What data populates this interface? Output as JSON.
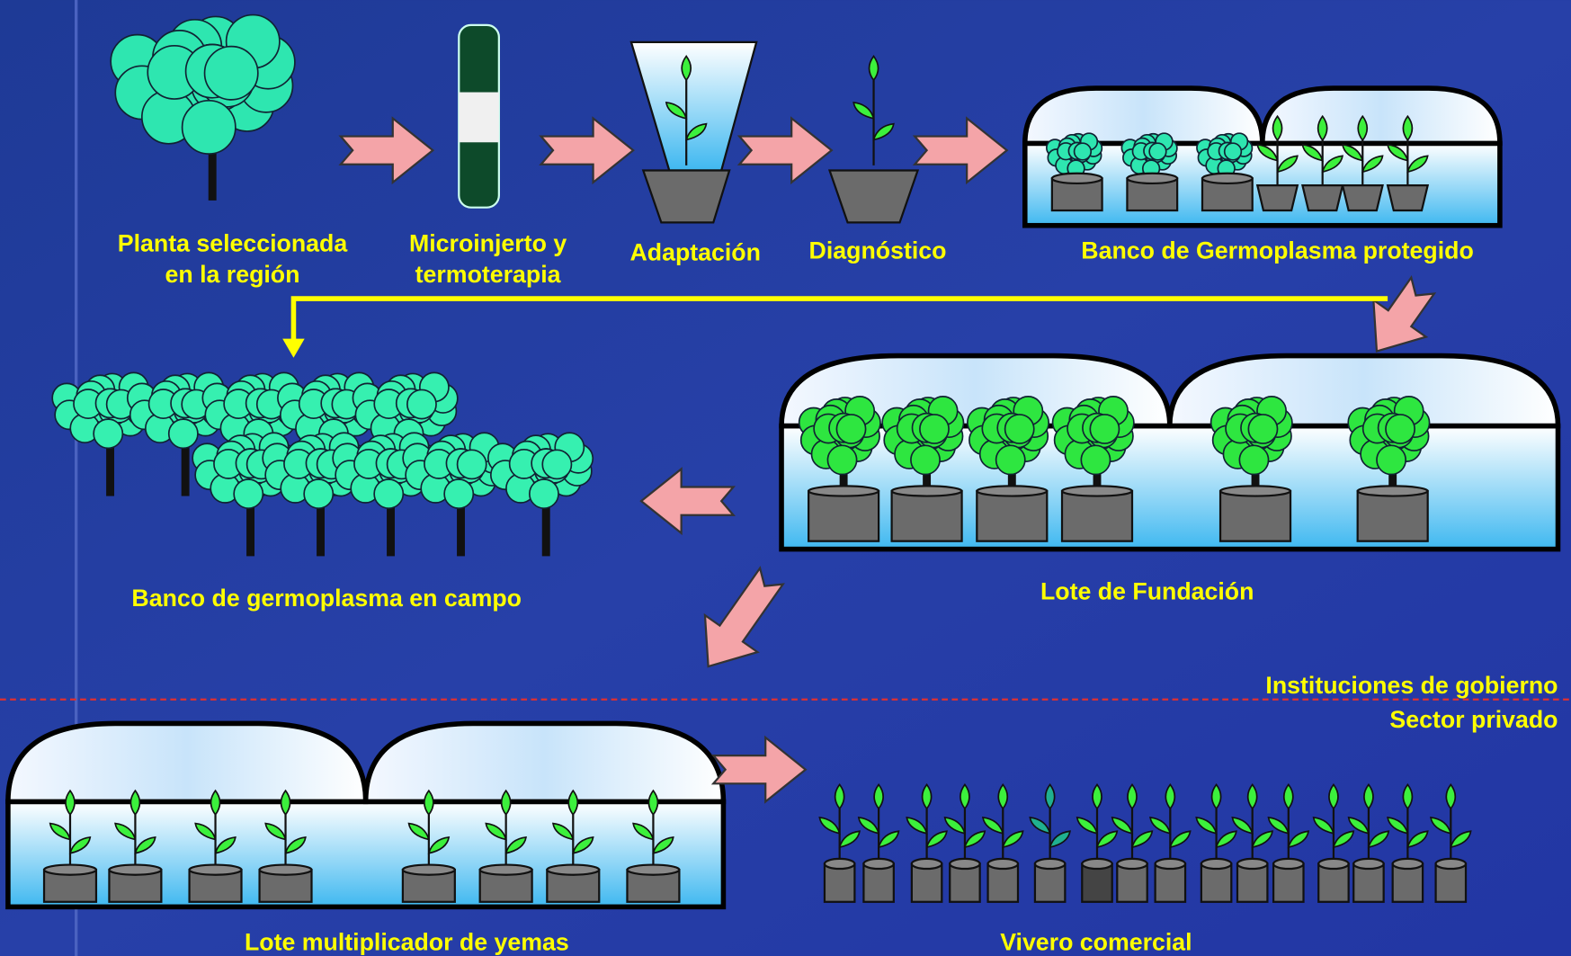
{
  "steps": [
    {
      "lines": [
        "Planta seleccionada",
        "en la región"
      ]
    },
    {
      "lines": [
        "Microinjerto y",
        "termoterapia"
      ]
    },
    {
      "lines": [
        "Adaptación"
      ]
    },
    {
      "lines": [
        "Diagnóstico"
      ]
    },
    {
      "lines": [
        "Banco de Germoplasma protegido"
      ]
    },
    {
      "lines": [
        "Lote  de Fundación"
      ]
    },
    {
      "lines": [
        "Banco de germoplasma en campo"
      ]
    },
    {
      "lines": [
        "Lote multiplicador de yemas"
      ]
    },
    {
      "lines": [
        "Vivero comercial"
      ]
    }
  ],
  "sectors": [
    "Instituciones de gobierno",
    "Sector privado"
  ]
}
